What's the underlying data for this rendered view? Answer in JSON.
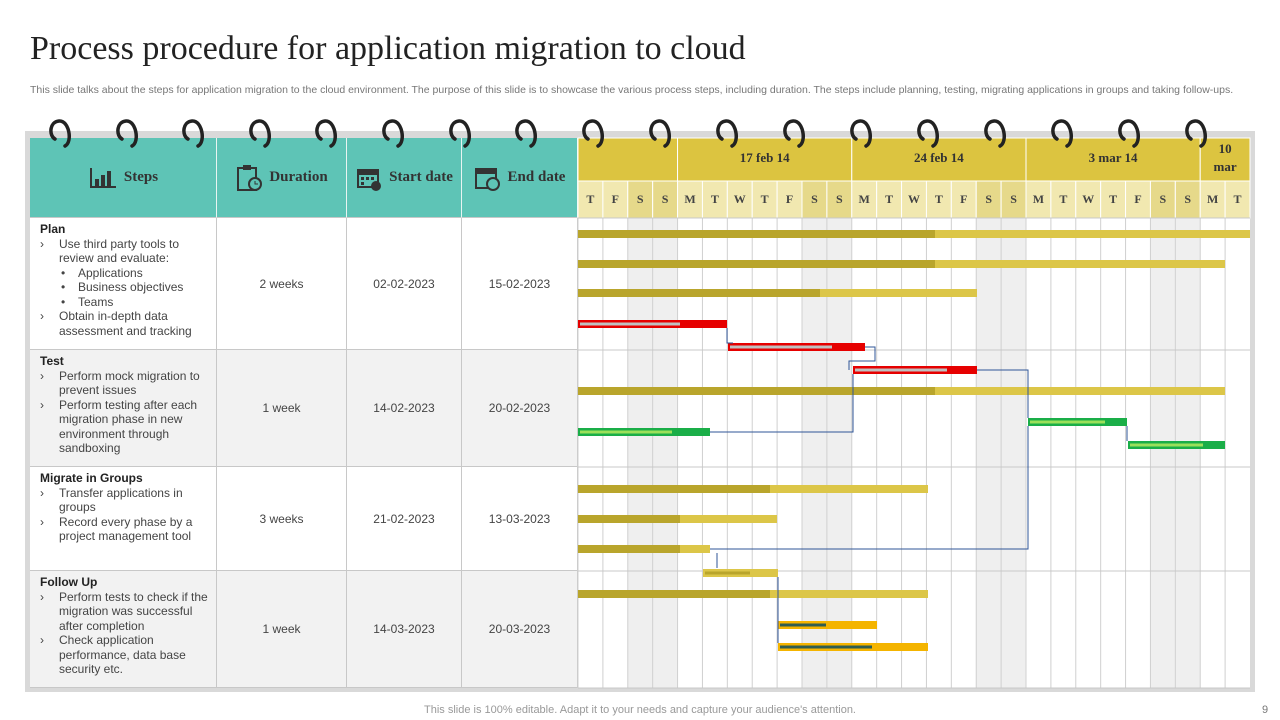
{
  "title": "Process procedure for application migration to cloud",
  "subtitle": "This slide talks about the steps for application migration to the cloud environment. The purpose of this slide is to showcase the various process steps, including duration. The steps include planning, testing, migrating applications in groups and taking follow-ups.",
  "table": {
    "headers": [
      "Steps",
      "Duration",
      "Start date",
      "End date"
    ],
    "weeks": [
      "17 feb 14",
      "24 feb 14",
      "3 mar 14",
      "10 mar"
    ],
    "days": [
      "T",
      "F",
      "S",
      "S",
      "M",
      "T",
      "W",
      "T",
      "F",
      "S",
      "S",
      "M",
      "T",
      "W",
      "T",
      "F",
      "S",
      "S",
      "M",
      "T",
      "W",
      "T",
      "F",
      "S",
      "S",
      "M",
      "T"
    ],
    "rows": [
      {
        "name": "Plan",
        "items": [
          {
            "text": "Use third party tools to review and evaluate:",
            "sub": [
              "Applications",
              "Business objectives",
              "Teams"
            ]
          },
          {
            "text": "Obtain in-depth data assessment and tracking"
          }
        ],
        "duration": "2 weeks",
        "start": "02-02-2023",
        "end": "15-02-2023"
      },
      {
        "name": "Test",
        "items": [
          {
            "text": "Perform mock migration to prevent issues"
          },
          {
            "text": "Perform testing after each migration phase in new environment through sandboxing"
          }
        ],
        "duration": "1 week",
        "start": "14-02-2023",
        "end": "20-02-2023"
      },
      {
        "name": "Migrate in Groups",
        "items": [
          {
            "text": "Transfer applications in groups"
          },
          {
            "text": "Record every phase by a project management tool"
          }
        ],
        "duration": "3 weeks",
        "start": "21-02-2023",
        "end": "13-03-2023"
      },
      {
        "name": "Follow Up",
        "items": [
          {
            "text": "Perform tests to check if the migration was successful after completion"
          },
          {
            "text": "Check application performance, data base security etc."
          }
        ],
        "duration": "1 week",
        "start": "14-03-2023",
        "end": "20-03-2023"
      }
    ]
  },
  "footer": "This slide is 100% editable. Adapt it to your needs and capture your audience's attention.",
  "page_number": "9"
}
